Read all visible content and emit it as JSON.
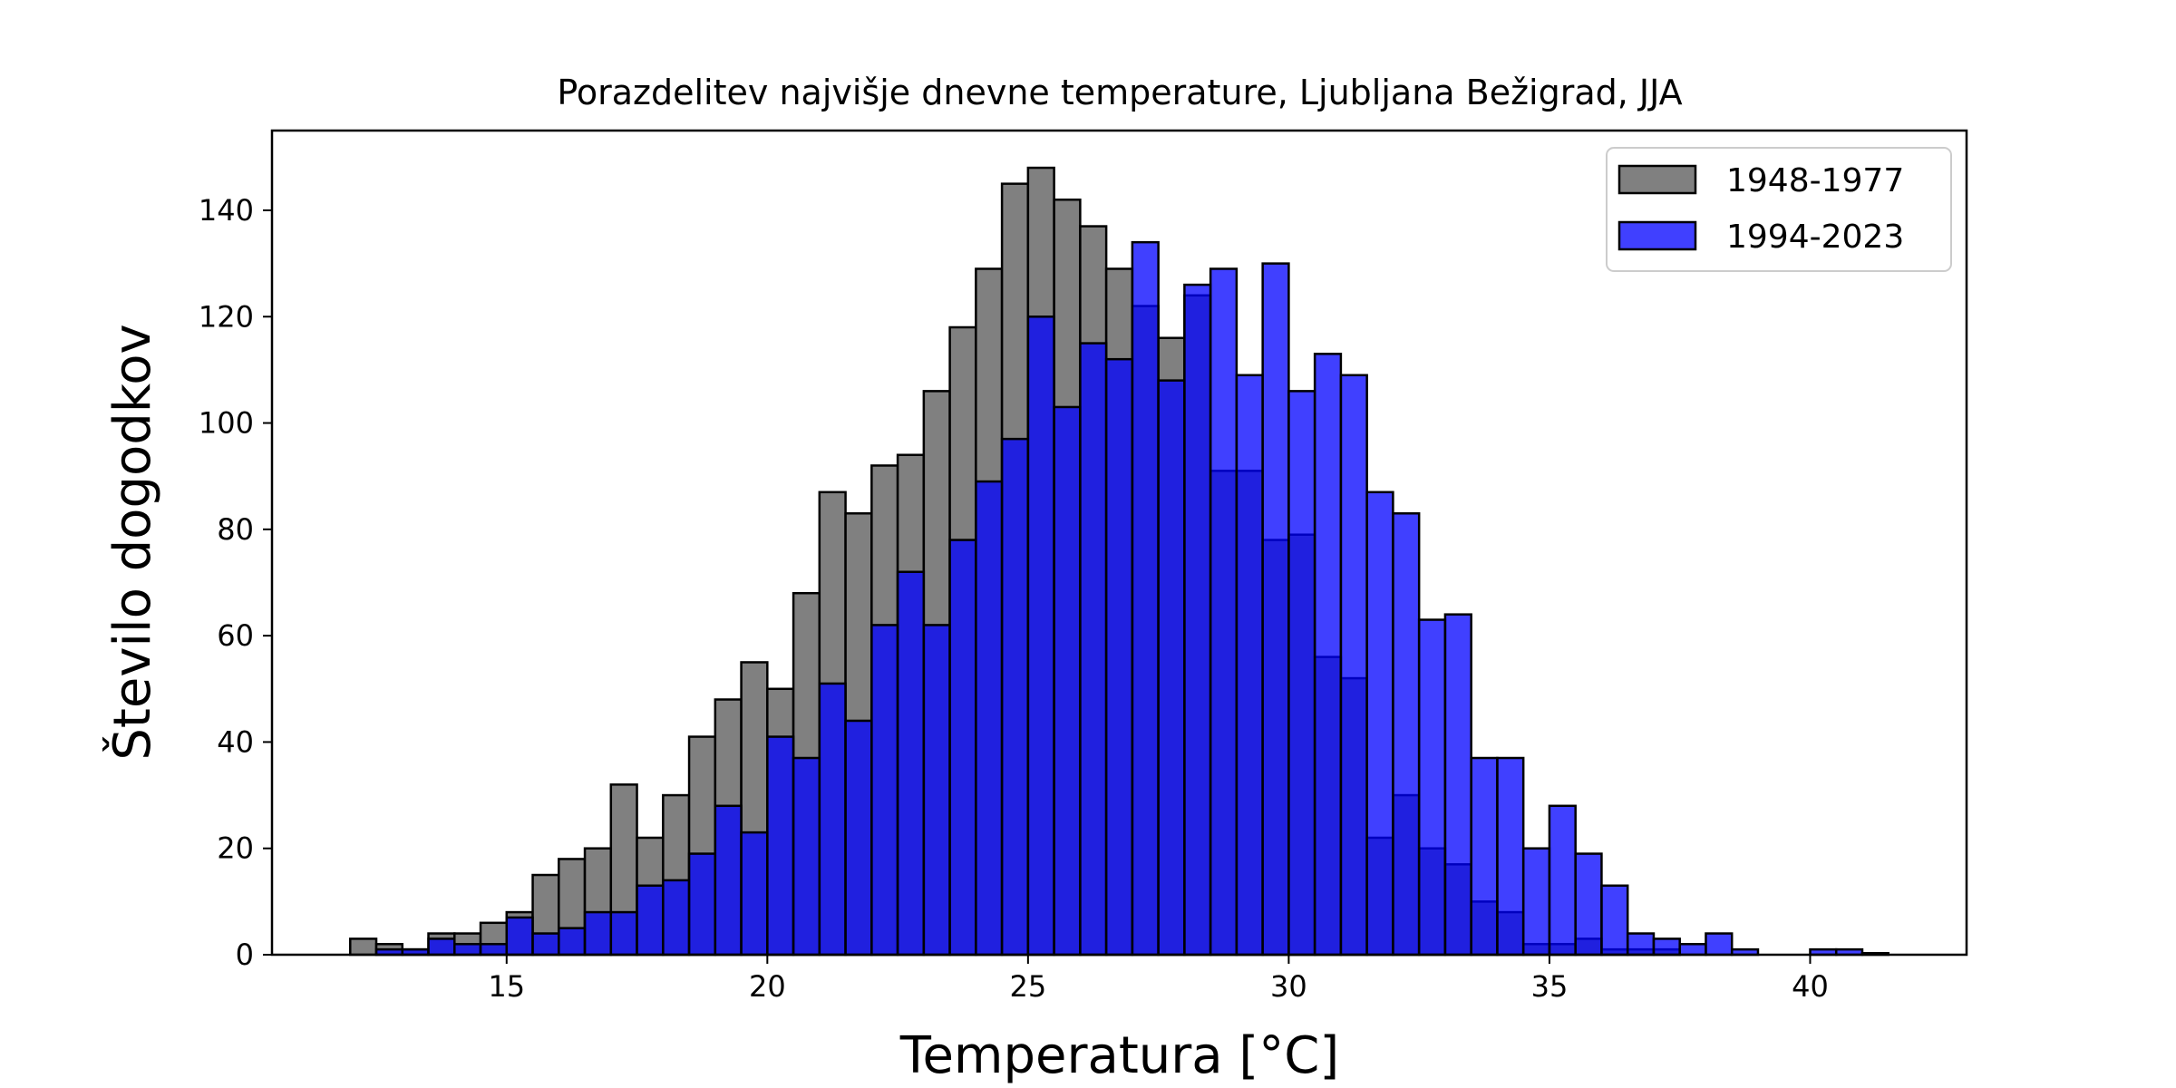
{
  "chart_data": {
    "type": "bar",
    "title": "Porazdelitev najvišje dnevne temperature, Ljubljana Bežigrad, JJA",
    "xlabel": "Temperatura [°C]",
    "ylabel": "Število dogodkov",
    "xlim": [
      10.5,
      43
    ],
    "ylim": [
      0,
      155
    ],
    "xticks": [
      15,
      20,
      25,
      30,
      35,
      40
    ],
    "yticks": [
      0,
      20,
      40,
      60,
      80,
      100,
      120,
      140
    ],
    "bin_start": 12.0,
    "bin_width": 0.5,
    "legend_position": "top-right",
    "series": [
      {
        "name": "1948-1977",
        "color": "#808080",
        "edge_color": "#000000",
        "values": [
          3,
          2,
          1,
          4,
          4,
          6,
          8,
          15,
          18,
          20,
          32,
          22,
          30,
          41,
          48,
          55,
          50,
          68,
          87,
          83,
          92,
          94,
          106,
          118,
          129,
          145,
          148,
          142,
          137,
          129,
          122,
          116,
          124,
          91,
          91,
          78,
          79,
          56,
          52,
          22,
          30,
          20,
          17,
          10,
          8,
          2,
          2,
          3,
          1,
          1,
          1,
          0,
          0,
          0,
          0,
          0,
          0,
          0,
          0
        ]
      },
      {
        "name": "1994-2023",
        "color": "#0000ff",
        "edge_color": "#000000",
        "values": [
          0,
          1,
          1,
          3,
          2,
          2,
          7,
          4,
          5,
          8,
          8,
          13,
          14,
          19,
          28,
          23,
          41,
          37,
          51,
          44,
          62,
          72,
          62,
          78,
          89,
          97,
          120,
          103,
          115,
          112,
          134,
          108,
          126,
          129,
          109,
          130,
          106,
          113,
          109,
          87,
          83,
          63,
          64,
          37,
          37,
          20,
          28,
          19,
          13,
          4,
          3,
          2,
          4,
          1,
          0,
          0,
          1,
          1,
          0.3
        ]
      }
    ]
  }
}
